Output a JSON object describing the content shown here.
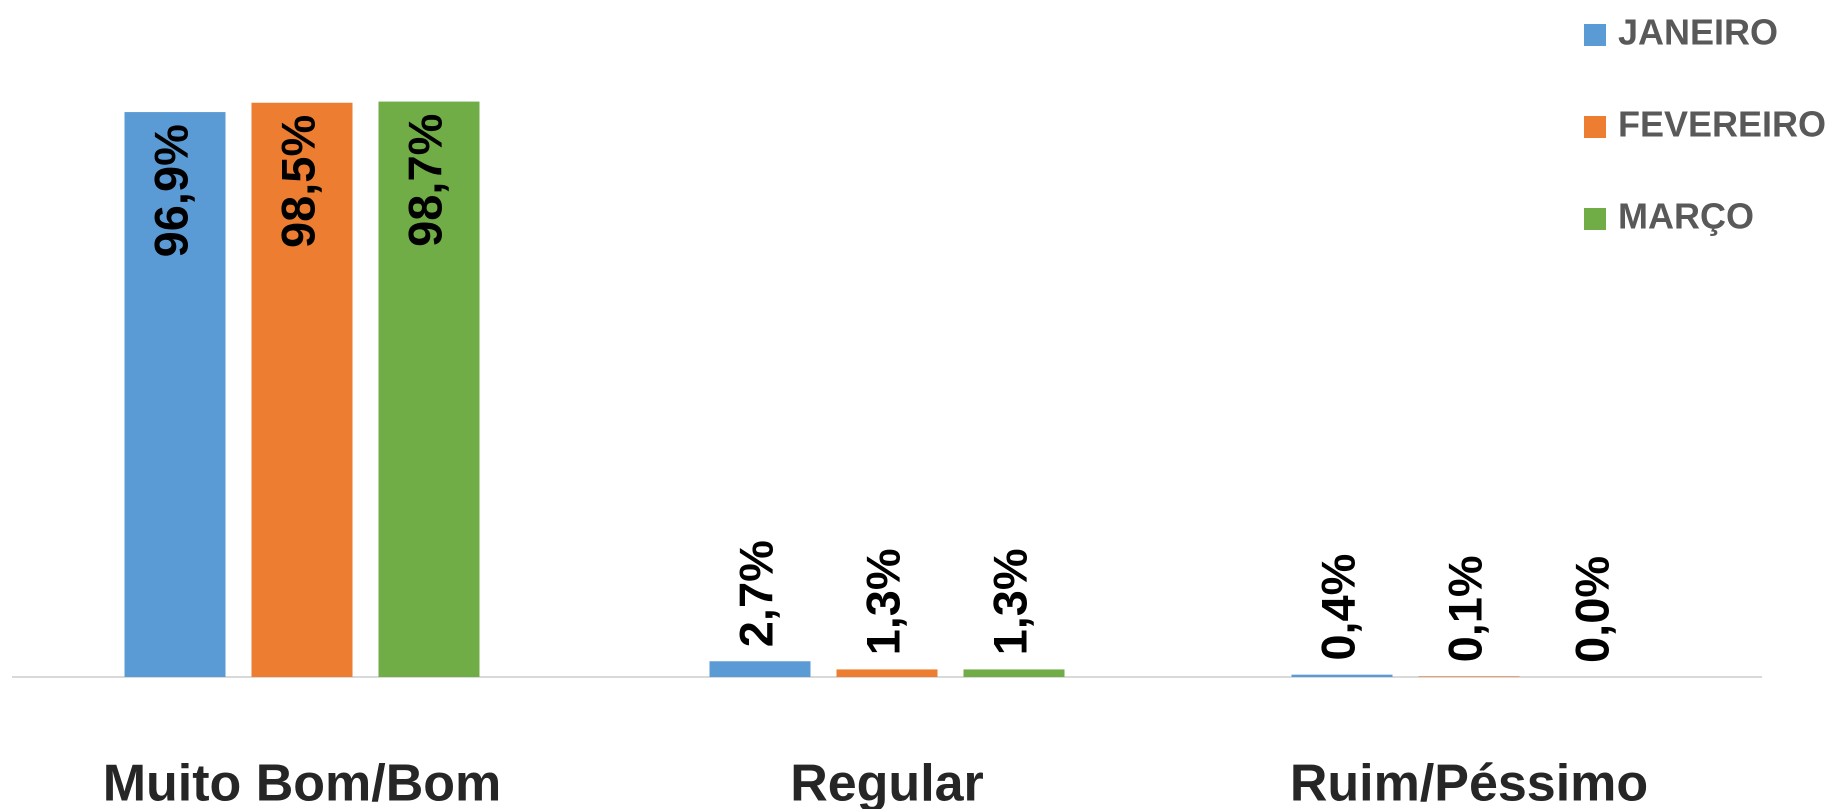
{
  "chart_data": {
    "type": "bar",
    "categories": [
      "Muito Bom/Bom",
      "Regular",
      "Ruim/Péssimo"
    ],
    "series": [
      {
        "name": "JANEIRO",
        "color": "#5b9bd5",
        "values": [
          96.9,
          2.7,
          0.4
        ],
        "value_labels": [
          "96,9%",
          "2,7%",
          "0,4%"
        ]
      },
      {
        "name": "FEVEREIRO",
        "color": "#ed7d31",
        "values": [
          98.5,
          1.3,
          0.1
        ],
        "value_labels": [
          "98,5%",
          "1,3%",
          "0,1%"
        ]
      },
      {
        "name": "MARÇO",
        "color": "#70ad47",
        "values": [
          98.7,
          1.3,
          0.0
        ],
        "value_labels": [
          "98,7%",
          "1,3%",
          "0,0%"
        ]
      }
    ],
    "ylim": [
      0,
      100
    ],
    "legend": "top-right"
  }
}
